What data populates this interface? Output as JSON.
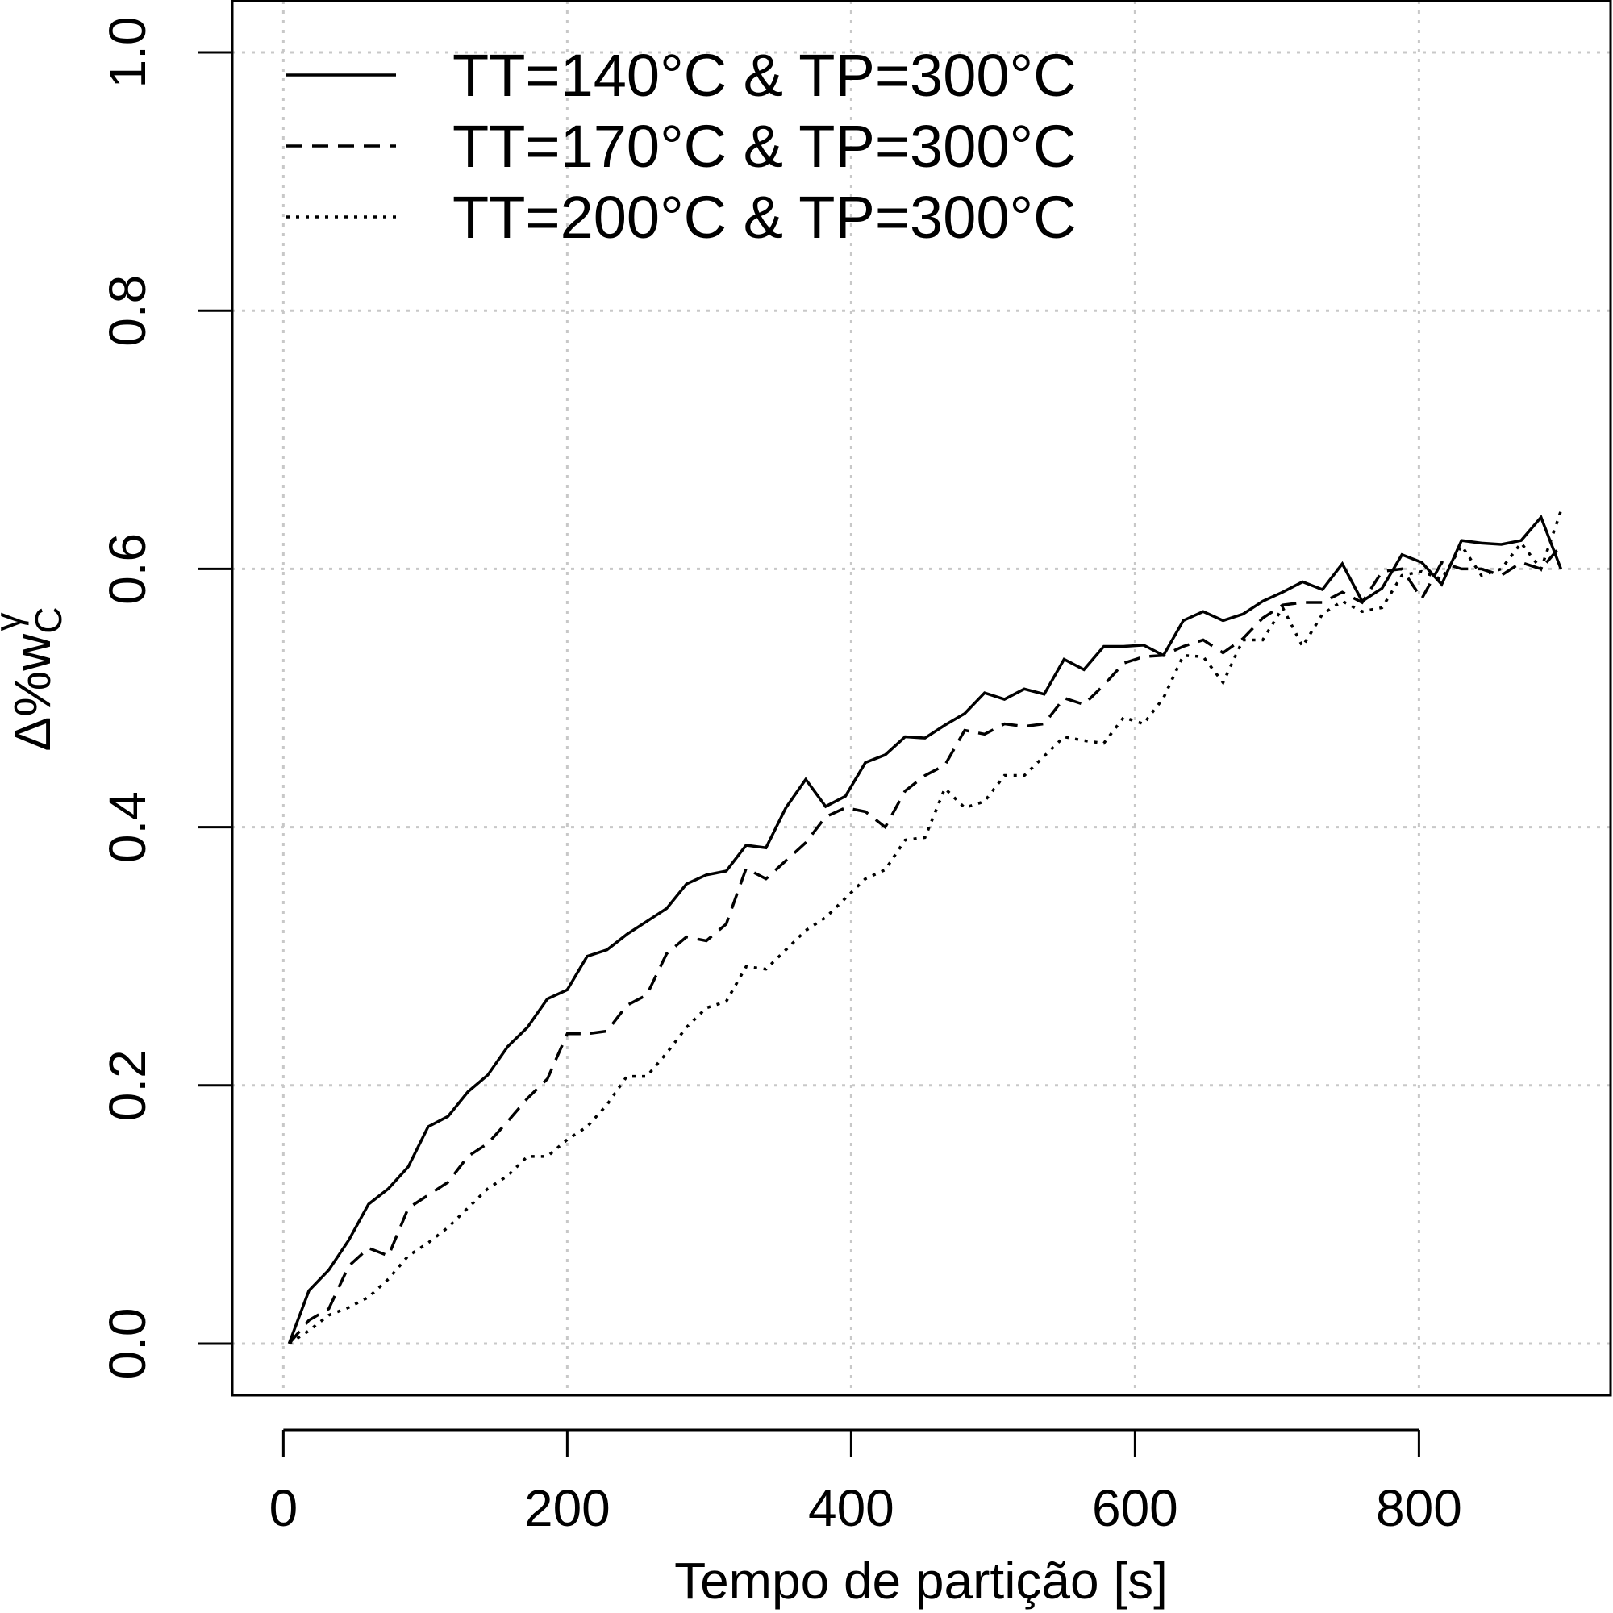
{
  "chart_data": {
    "type": "line",
    "x_label": "Tempo de partição [s]",
    "y_label": {
      "main": "Δ%w",
      "sub": "C",
      "sup": "γ"
    },
    "x": [
      4,
      18,
      32,
      46,
      60,
      74,
      88,
      102,
      116,
      130,
      144,
      158,
      172,
      186,
      200,
      214,
      228,
      242,
      256,
      270,
      284,
      298,
      312,
      326,
      340,
      354,
      368,
      382,
      396,
      410,
      424,
      438,
      452,
      466,
      480,
      494,
      508,
      522,
      536,
      550,
      564,
      578,
      592,
      606,
      620,
      634,
      648,
      662,
      676,
      690,
      704,
      718,
      732,
      746,
      760,
      774,
      788,
      802,
      816,
      830,
      844,
      858,
      872,
      886,
      900
    ],
    "series": [
      {
        "name": "TT=140°C & TP=300°C",
        "color": "#000000",
        "linestyle": "solid",
        "values": [
          0,
          0.041,
          0.057,
          0.08,
          0.108,
          0.12,
          0.137,
          0.168,
          0.176,
          0.195,
          0.208,
          0.23,
          0.245,
          0.267,
          0.274,
          0.3,
          0.305,
          0.317,
          0.327,
          0.337,
          0.356,
          0.363,
          0.366,
          0.386,
          0.384,
          0.415,
          0.437,
          0.416,
          0.424,
          0.45,
          0.456,
          0.47,
          0.469,
          0.479,
          0.488,
          0.504,
          0.499,
          0.507,
          0.503,
          0.53,
          0.522,
          0.54,
          0.54,
          0.541,
          0.533,
          0.56,
          0.567,
          0.56,
          0.565,
          0.575,
          0.582,
          0.59,
          0.584,
          0.604,
          0.575,
          0.585,
          0.611,
          0.605,
          0.588,
          0.622,
          0.62,
          0.619,
          0.622,
          0.64,
          0.6
        ]
      },
      {
        "name": "TT=170°C & TP=300°C",
        "color": "#000000",
        "linestyle": "dashed",
        "values": [
          0,
          0.018,
          0.027,
          0.06,
          0.074,
          0.068,
          0.105,
          0.115,
          0.125,
          0.145,
          0.155,
          0.172,
          0.19,
          0.205,
          0.24,
          0.24,
          0.242,
          0.262,
          0.27,
          0.302,
          0.315,
          0.312,
          0.325,
          0.368,
          0.36,
          0.374,
          0.388,
          0.408,
          0.415,
          0.412,
          0.4,
          0.428,
          0.44,
          0.448,
          0.475,
          0.472,
          0.48,
          0.478,
          0.48,
          0.5,
          0.495,
          0.51,
          0.527,
          0.532,
          0.533,
          0.54,
          0.545,
          0.535,
          0.546,
          0.562,
          0.572,
          0.574,
          0.574,
          0.582,
          0.574,
          0.598,
          0.6,
          0.577,
          0.605,
          0.6,
          0.6,
          0.595,
          0.605,
          0.6,
          0.618
        ]
      },
      {
        "name": "TT=200°C & TP=300°C",
        "color": "#000000",
        "linestyle": "dotted",
        "values": [
          0,
          0.01,
          0.022,
          0.028,
          0.036,
          0.05,
          0.068,
          0.078,
          0.09,
          0.105,
          0.12,
          0.13,
          0.145,
          0.145,
          0.158,
          0.168,
          0.185,
          0.207,
          0.207,
          0.225,
          0.245,
          0.26,
          0.265,
          0.292,
          0.29,
          0.305,
          0.32,
          0.33,
          0.345,
          0.36,
          0.367,
          0.39,
          0.392,
          0.43,
          0.415,
          0.42,
          0.44,
          0.44,
          0.455,
          0.47,
          0.467,
          0.465,
          0.485,
          0.48,
          0.5,
          0.533,
          0.532,
          0.512,
          0.545,
          0.545,
          0.57,
          0.54,
          0.565,
          0.575,
          0.567,
          0.57,
          0.595,
          0.598,
          0.592,
          0.618,
          0.595,
          0.6,
          0.62,
          0.6,
          0.645
        ]
      }
    ],
    "xlim": [
      -36,
      935
    ],
    "ylim": [
      -0.04,
      1.04
    ],
    "xticks": [
      0,
      200,
      400,
      600,
      800
    ],
    "yticks": [
      {
        "value": 0,
        "label": "0.0"
      },
      {
        "value": 0.2,
        "label": "0.2"
      },
      {
        "value": 0.4,
        "label": "0.4"
      },
      {
        "value": 0.6,
        "label": "0.6"
      },
      {
        "value": 0.8,
        "label": "0.8"
      },
      {
        "value": 1,
        "label": "1.0"
      }
    ],
    "grid": true,
    "legend": "top-left"
  }
}
